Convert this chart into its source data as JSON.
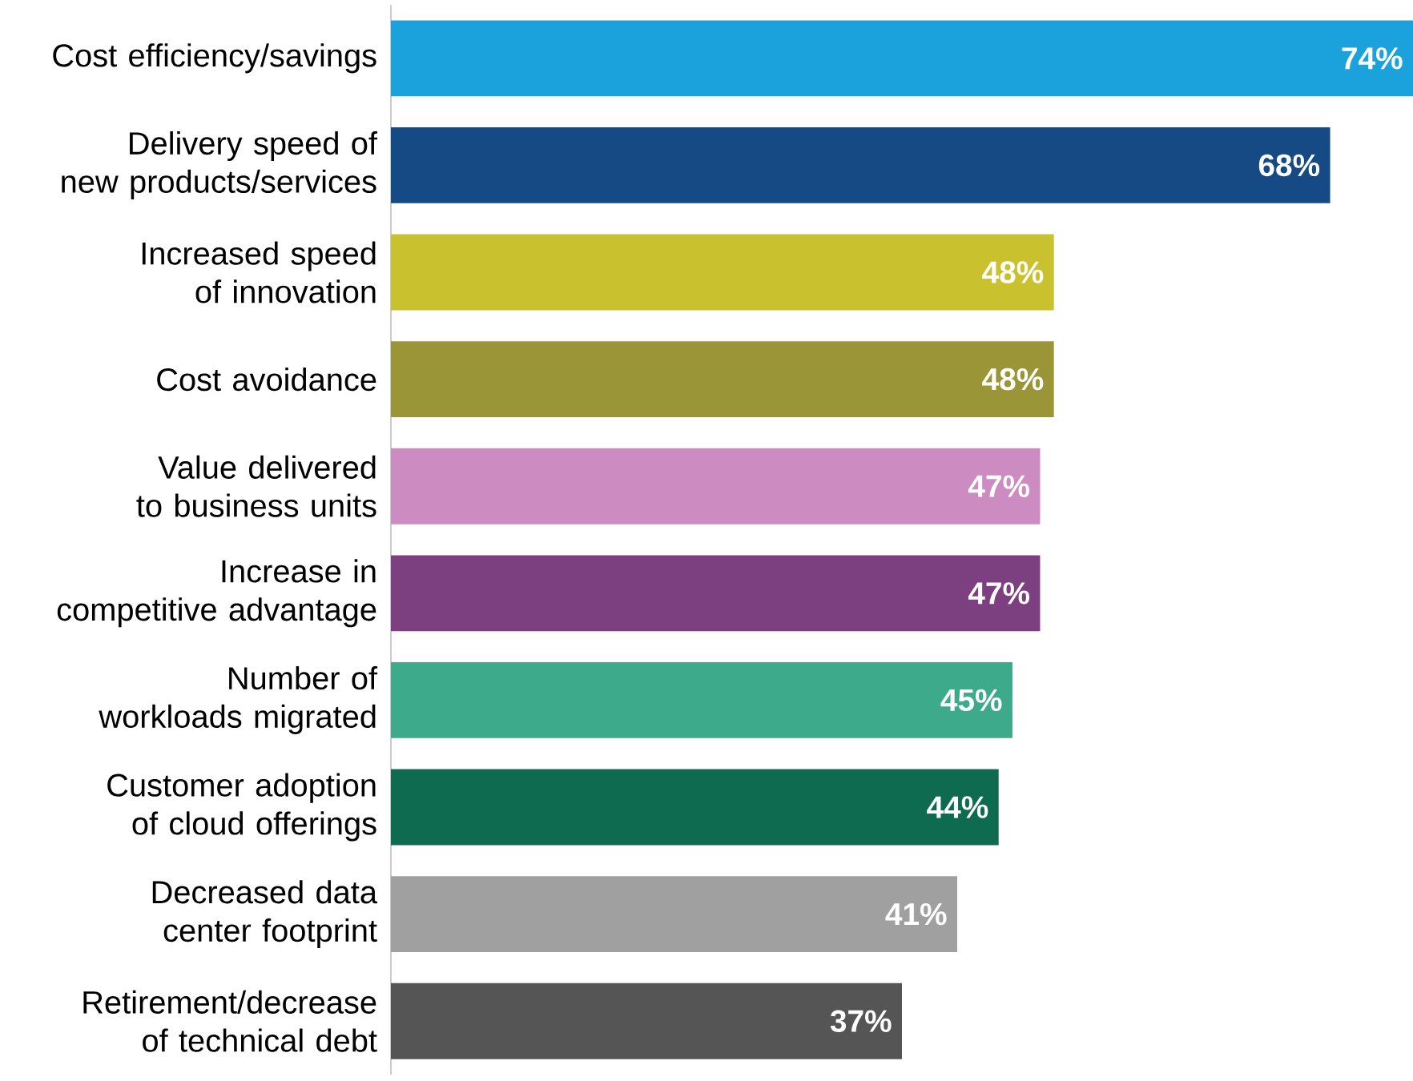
{
  "chart_data": {
    "type": "bar",
    "orientation": "horizontal",
    "categories": [
      "Cost efficiency/savings",
      "Delivery speed of new products/services",
      "Increased speed of innovation",
      "Cost avoidance",
      "Value delivered to business units",
      "Increase in competitive advantage",
      "Number of workloads migrated",
      "Customer adoption of cloud offerings",
      "Decreased data center footprint",
      "Retirement/decrease of technical debt"
    ],
    "values": [
      74,
      68,
      48,
      48,
      47,
      47,
      45,
      44,
      41,
      37
    ],
    "value_labels": [
      "74%",
      "68%",
      "48%",
      "48%",
      "47%",
      "47%",
      "45%",
      "44%",
      "41%",
      "37%"
    ],
    "colors": [
      "#1ba1dc",
      "#154a84",
      "#c9c22e",
      "#9a9537",
      "#cc8cc2",
      "#7c3f80",
      "#3eaa8c",
      "#0f6b50",
      "#a0a0a0",
      "#555555"
    ]
  }
}
